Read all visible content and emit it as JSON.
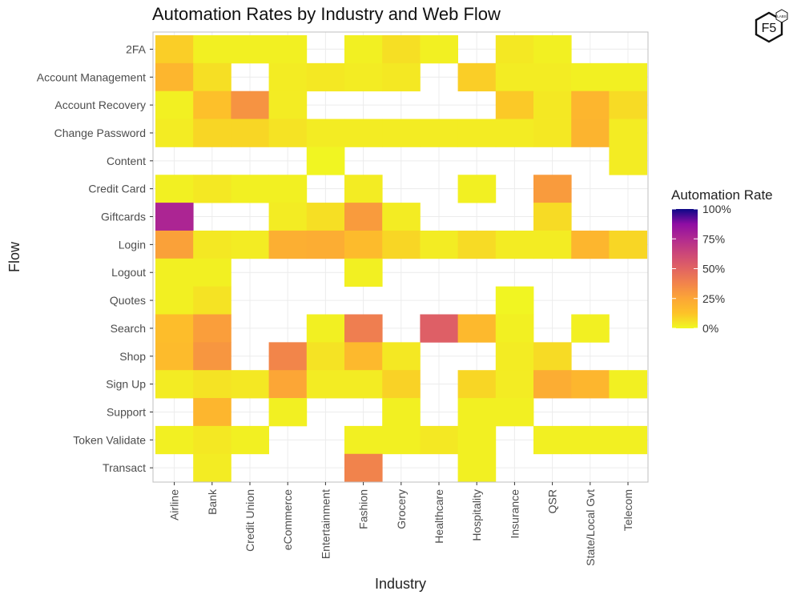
{
  "chart_data": {
    "type": "heatmap",
    "title": "Automation Rates by Industry and Web Flow",
    "xlabel": "Industry",
    "ylabel": "Flow",
    "x_categories": [
      "Airline",
      "Bank",
      "Credit Union",
      "eCommerce",
      "Entertainment",
      "Fashion",
      "Grocery",
      "Healthcare",
      "Hospitality",
      "Insurance",
      "QSR",
      "State/Local Gvt",
      "Telecom"
    ],
    "y_categories": [
      "2FA",
      "Account Management",
      "Account Recovery",
      "Change Password",
      "Content",
      "Credit Card",
      "Giftcards",
      "Login",
      "Logout",
      "Quotes",
      "Search",
      "Shop",
      "Sign Up",
      "Support",
      "Token Validate",
      "Transact"
    ],
    "values": [
      [
        0.1,
        0.02,
        0.02,
        0.02,
        null,
        0.02,
        0.06,
        0.02,
        null,
        0.04,
        0.02,
        null,
        null
      ],
      [
        0.18,
        0.06,
        null,
        0.03,
        0.04,
        0.03,
        0.04,
        null,
        0.1,
        0.03,
        0.03,
        0.02,
        0.02
      ],
      [
        0.02,
        0.14,
        0.32,
        0.03,
        null,
        null,
        null,
        null,
        null,
        0.11,
        0.04,
        0.18,
        0.07
      ],
      [
        0.03,
        0.08,
        0.08,
        0.05,
        0.03,
        0.03,
        0.03,
        0.03,
        0.03,
        0.03,
        0.04,
        0.19,
        0.03
      ],
      [
        null,
        null,
        null,
        null,
        0.01,
        null,
        null,
        null,
        null,
        null,
        null,
        null,
        0.03
      ],
      [
        0.02,
        0.04,
        0.02,
        0.02,
        null,
        0.03,
        null,
        null,
        0.02,
        null,
        0.29,
        null,
        null
      ],
      [
        0.77,
        null,
        null,
        0.03,
        0.06,
        0.29,
        0.03,
        null,
        null,
        null,
        0.07,
        null,
        null
      ],
      [
        0.27,
        0.04,
        0.03,
        0.21,
        0.22,
        0.16,
        0.08,
        0.03,
        0.07,
        0.03,
        0.03,
        0.18,
        0.08
      ],
      [
        0.02,
        0.02,
        null,
        null,
        null,
        0.02,
        null,
        null,
        null,
        null,
        null,
        null,
        null
      ],
      [
        0.02,
        0.05,
        null,
        null,
        null,
        null,
        null,
        null,
        null,
        0.01,
        null,
        null,
        null
      ],
      [
        0.15,
        0.28,
        null,
        null,
        0.02,
        0.4,
        null,
        0.52,
        0.17,
        0.02,
        null,
        0.02,
        null
      ],
      [
        0.16,
        0.31,
        null,
        0.37,
        0.05,
        0.17,
        0.04,
        null,
        null,
        0.03,
        0.07,
        null,
        null
      ],
      [
        0.03,
        0.05,
        0.04,
        0.25,
        0.03,
        0.03,
        0.09,
        null,
        0.08,
        0.03,
        0.22,
        0.18,
        0.02
      ],
      [
        null,
        0.18,
        null,
        0.02,
        null,
        null,
        0.02,
        null,
        0.02,
        0.02,
        null,
        null,
        null
      ],
      [
        0.02,
        0.04,
        0.02,
        null,
        null,
        0.02,
        0.02,
        0.04,
        0.02,
        null,
        0.02,
        0.02,
        0.02
      ],
      [
        null,
        0.03,
        null,
        null,
        null,
        0.38,
        null,
        null,
        0.02,
        null,
        null,
        null,
        null
      ]
    ],
    "legend": {
      "title": "Automation Rate",
      "ticks": [
        "0%",
        "25%",
        "50%",
        "75%",
        "100%"
      ],
      "range": [
        0,
        1
      ],
      "colormap": "plasma (reversed)",
      "placement": "right"
    },
    "grid": true
  },
  "logo": {
    "text": "F5",
    "subtext": "LABS"
  },
  "colors": {
    "panel_border": "#bfbfbf",
    "grid": "#ececec",
    "missing": "#ffffff"
  }
}
